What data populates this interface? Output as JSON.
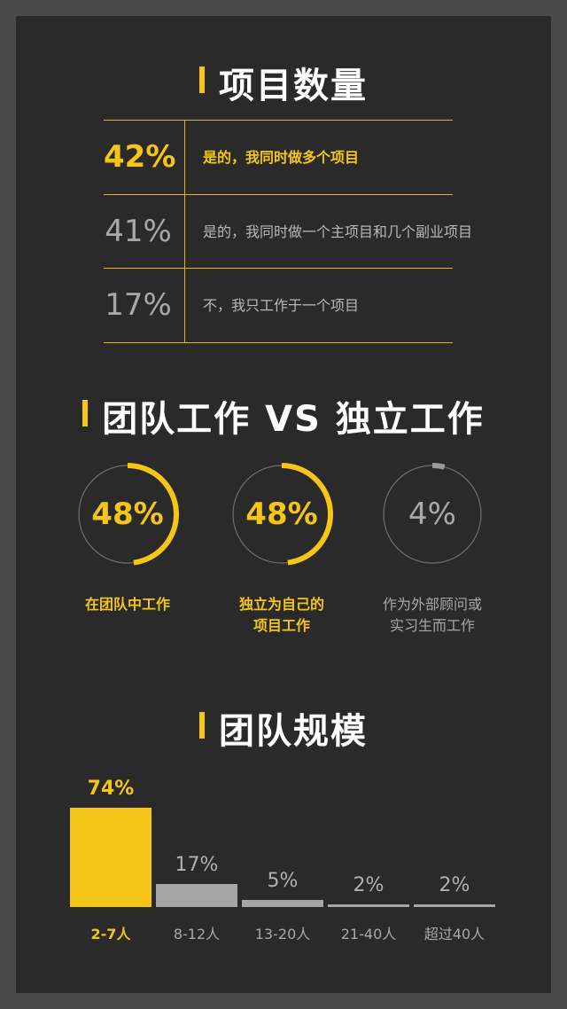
{
  "sections": {
    "projects": {
      "title": "项目数量",
      "rows": [
        {
          "pct": "42%",
          "desc": "是的，我同时做多个项目"
        },
        {
          "pct": "41%",
          "desc": "是的，我同时做一个主项目和几个副业项目"
        },
        {
          "pct": "17%",
          "desc": "不，我只工作于一个项目"
        }
      ]
    },
    "work_mode": {
      "title": "团队工作 VS 独立工作",
      "items": [
        {
          "pct": "48%",
          "label_line1": "在团队中工作",
          "label_line2": ""
        },
        {
          "pct": "48%",
          "label_line1": "独立为自己的",
          "label_line2": "项目工作"
        },
        {
          "pct": "4%",
          "label_line1": "作为外部顾问或",
          "label_line2": "实习生而工作"
        }
      ]
    },
    "team_size": {
      "title": "团队规模"
    }
  },
  "chart_data": [
    {
      "type": "table",
      "title": "项目数量",
      "rows": [
        {
          "value": 42,
          "label": "是的，我同时做多个项目"
        },
        {
          "value": 41,
          "label": "是的，我同时做一个主项目和几个副业项目"
        },
        {
          "value": 17,
          "label": "不，我只工作于一个项目"
        }
      ]
    },
    {
      "type": "pie",
      "title": "团队工作 VS 独立工作",
      "categories": [
        "在团队中工作",
        "独立为自己的项目工作",
        "作为外部顾问或实习生而工作"
      ],
      "values": [
        48,
        48,
        4
      ]
    },
    {
      "type": "bar",
      "title": "团队规模",
      "categories": [
        "2-7人",
        "8-12人",
        "13-20人",
        "21-40人",
        "超过40人"
      ],
      "values": [
        74,
        17,
        5,
        2,
        2
      ],
      "value_labels": [
        "74%",
        "17%",
        "5%",
        "2%",
        "2%"
      ],
      "ylim": [
        0,
        74
      ]
    }
  ],
  "colors": {
    "accent": "#f5c518",
    "muted": "#a8a8a8",
    "bar_grey": "#a6a6a6",
    "background": "#2a2a2b",
    "frame": "#4a4a4a"
  }
}
